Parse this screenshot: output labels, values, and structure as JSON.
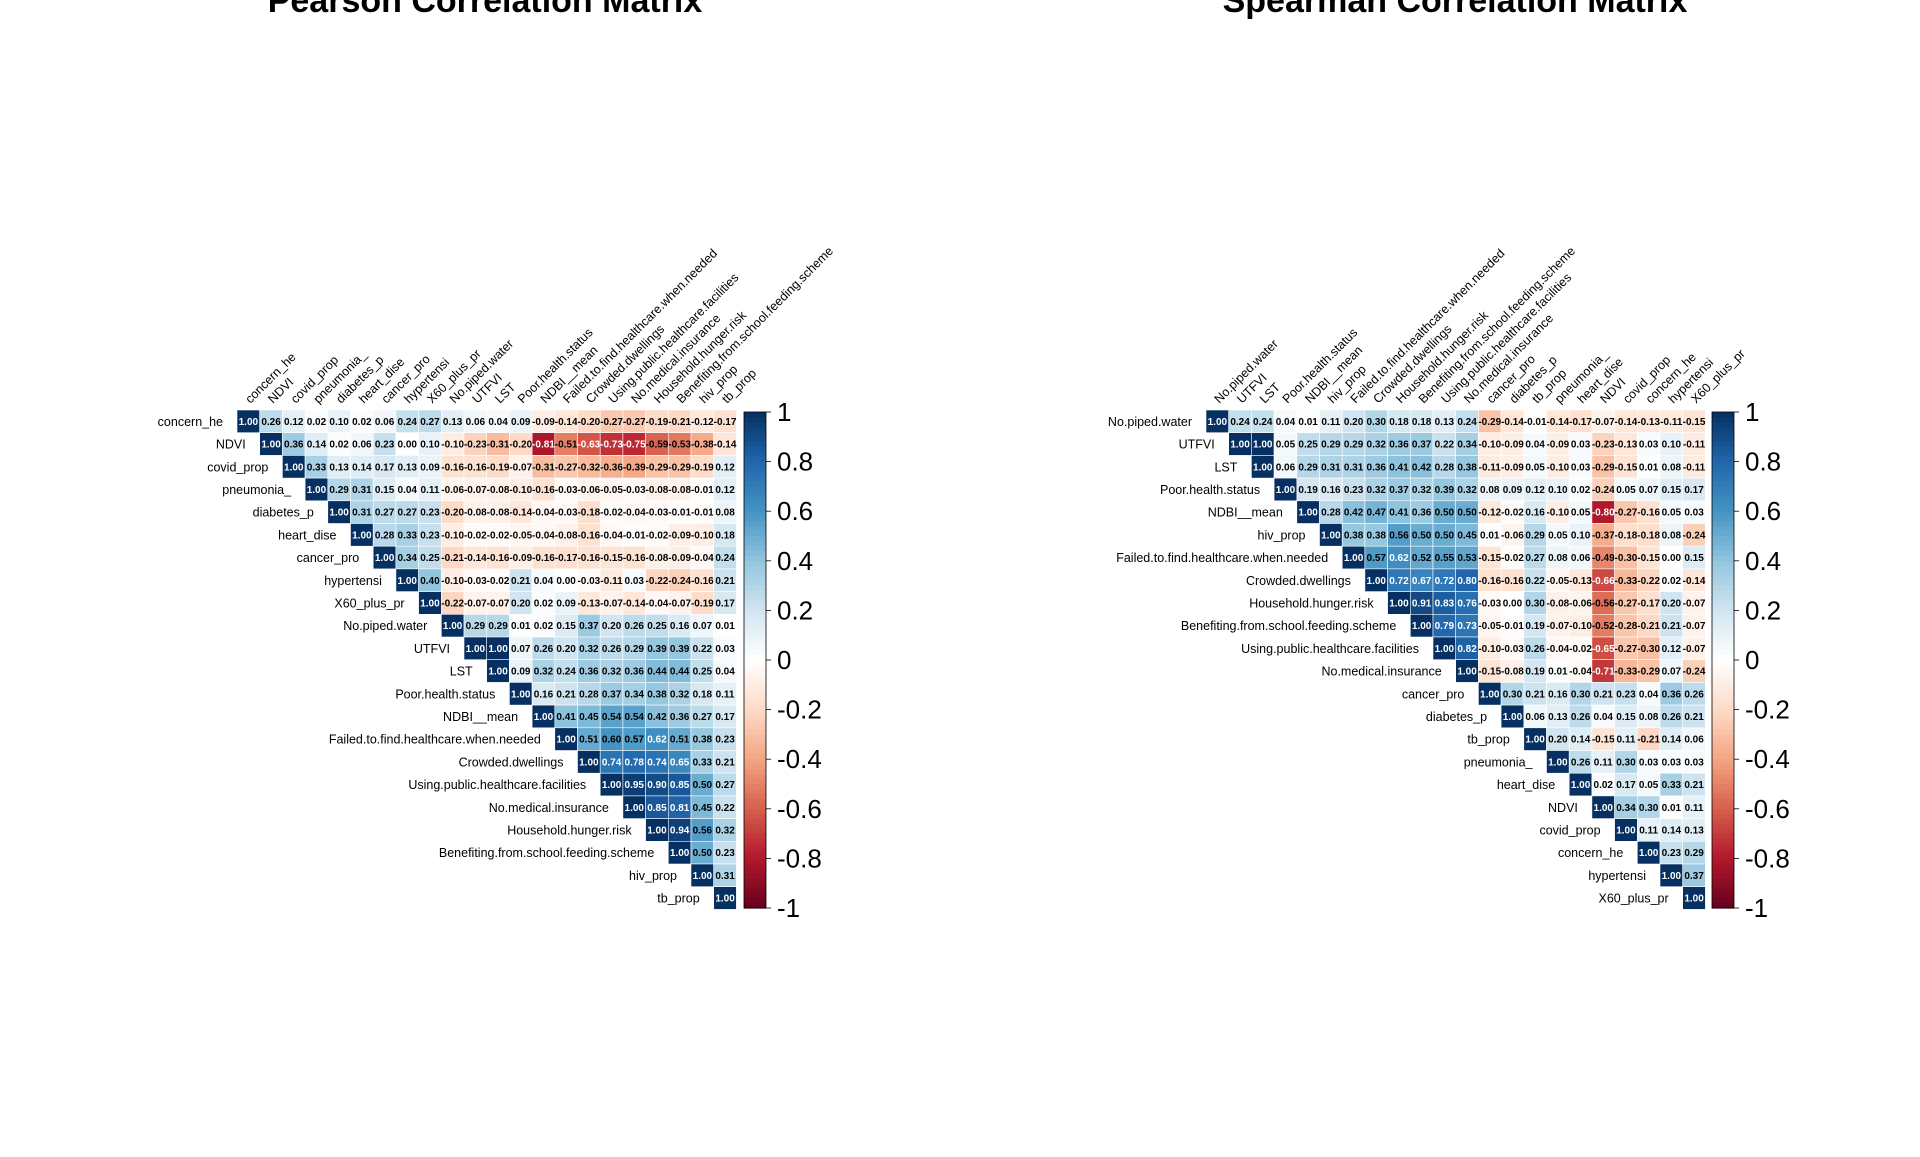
{
  "colors": {
    "strong_negative": "#67001F",
    "negative": "#B2182B",
    "mid_negative": "#D6604D",
    "light_negative": "#F4A582",
    "pale_negative": "#FDDBC7",
    "zero": "#FFFFFF",
    "pale_positive": "#D1E5F0",
    "light_positive": "#92C5DE",
    "mid_positive": "#4393C3",
    "positive": "#2166AC",
    "strong_positive": "#053061"
  },
  "chart_data": [
    {
      "type": "heatmap",
      "title": "Pearson Correlation Matrix",
      "layout": "upper-triangle",
      "legend_placement": "right",
      "legend_ticks": [
        "1",
        "0.8",
        "0.6",
        "0.4",
        "0.2",
        "0",
        "-0.2",
        "-0.4",
        "-0.6",
        "-0.8",
        "-1"
      ],
      "value_range": [
        -1,
        1
      ],
      "variables": [
        "concern_he",
        "NDVI",
        "covid_prop",
        "pneumonia_",
        "diabetes_p",
        "heart_dise",
        "cancer_pro",
        "hypertensi",
        "X60_plus_pr",
        "No.piped.water",
        "UTFVI",
        "LST",
        "Poor.health.status",
        "NDBI__mean",
        "Failed.to.find.healthcare.when.needed",
        "Crowded.dwellings",
        "Using.public.healthcare.facilities",
        "No.medical.insurance",
        "Household.hunger.risk",
        "Benefiting.from.school.feeding.scheme",
        "hiv_prop",
        "tb_prop"
      ],
      "matrix": [
        [
          1.0,
          0.26,
          0.12,
          0.02,
          0.1,
          0.02,
          0.06,
          0.24,
          0.27,
          0.13,
          0.06,
          0.04,
          0.09,
          -0.09,
          -0.14,
          -0.2,
          -0.27,
          -0.27,
          -0.19,
          -0.21,
          -0.12,
          -0.17
        ],
        [
          null,
          1.0,
          0.36,
          0.14,
          0.02,
          0.06,
          0.23,
          0.0,
          0.1,
          -0.1,
          -0.23,
          -0.31,
          -0.2,
          -0.81,
          -0.51,
          -0.63,
          -0.73,
          -0.75,
          -0.59,
          -0.53,
          -0.38,
          -0.14
        ],
        [
          null,
          null,
          1.0,
          0.33,
          0.13,
          0.14,
          0.17,
          0.13,
          0.09,
          -0.16,
          -0.16,
          -0.19,
          -0.07,
          -0.31,
          -0.27,
          -0.32,
          -0.36,
          -0.39,
          -0.29,
          -0.29,
          -0.19,
          0.12
        ],
        [
          null,
          null,
          null,
          1.0,
          0.29,
          0.31,
          0.15,
          0.04,
          0.11,
          -0.06,
          -0.07,
          -0.08,
          -0.1,
          -0.16,
          -0.03,
          -0.06,
          -0.05,
          -0.03,
          -0.08,
          -0.08,
          -0.01,
          0.12
        ],
        [
          null,
          null,
          null,
          null,
          1.0,
          0.31,
          0.27,
          0.27,
          0.23,
          -0.2,
          -0.08,
          -0.08,
          -0.14,
          -0.04,
          -0.03,
          -0.18,
          -0.02,
          -0.04,
          -0.03,
          -0.01,
          -0.01,
          0.08
        ],
        [
          null,
          null,
          null,
          null,
          null,
          1.0,
          0.28,
          0.33,
          0.23,
          -0.1,
          -0.02,
          -0.02,
          -0.05,
          -0.04,
          -0.08,
          -0.16,
          -0.04,
          -0.01,
          -0.02,
          -0.09,
          -0.1,
          0.18
        ],
        [
          null,
          null,
          null,
          null,
          null,
          null,
          1.0,
          0.34,
          0.25,
          -0.21,
          -0.14,
          -0.16,
          -0.09,
          -0.16,
          -0.17,
          -0.16,
          -0.15,
          -0.16,
          -0.08,
          -0.09,
          -0.04,
          0.24
        ],
        [
          null,
          null,
          null,
          null,
          null,
          null,
          null,
          1.0,
          0.4,
          -0.1,
          -0.03,
          -0.02,
          0.21,
          0.04,
          0.0,
          -0.03,
          -0.11,
          0.03,
          -0.22,
          -0.24,
          -0.16,
          0.21
        ],
        [
          null,
          null,
          null,
          null,
          null,
          null,
          null,
          null,
          1.0,
          -0.22,
          -0.07,
          -0.07,
          0.2,
          0.02,
          0.09,
          -0.13,
          -0.07,
          -0.14,
          -0.04,
          -0.07,
          -0.19,
          0.17
        ],
        [
          null,
          null,
          null,
          null,
          null,
          null,
          null,
          null,
          null,
          1.0,
          0.29,
          0.29,
          0.01,
          0.02,
          0.15,
          0.37,
          0.2,
          0.26,
          0.25,
          0.16,
          0.07,
          0.01
        ],
        [
          null,
          null,
          null,
          null,
          null,
          null,
          null,
          null,
          null,
          null,
          1.0,
          1.0,
          0.07,
          0.26,
          0.2,
          0.32,
          0.26,
          0.29,
          0.39,
          0.39,
          0.22,
          0.03
        ],
        [
          null,
          null,
          null,
          null,
          null,
          null,
          null,
          null,
          null,
          null,
          null,
          1.0,
          0.09,
          0.32,
          0.24,
          0.36,
          0.32,
          0.36,
          0.44,
          0.44,
          0.25,
          0.04
        ],
        [
          null,
          null,
          null,
          null,
          null,
          null,
          null,
          null,
          null,
          null,
          null,
          null,
          1.0,
          0.16,
          0.21,
          0.28,
          0.37,
          0.34,
          0.38,
          0.32,
          0.18,
          0.11
        ],
        [
          null,
          null,
          null,
          null,
          null,
          null,
          null,
          null,
          null,
          null,
          null,
          null,
          null,
          1.0,
          0.41,
          0.45,
          0.54,
          0.54,
          0.42,
          0.36,
          0.27,
          0.17
        ],
        [
          null,
          null,
          null,
          null,
          null,
          null,
          null,
          null,
          null,
          null,
          null,
          null,
          null,
          null,
          1.0,
          0.51,
          0.6,
          0.57,
          0.62,
          0.51,
          0.38,
          0.23
        ],
        [
          null,
          null,
          null,
          null,
          null,
          null,
          null,
          null,
          null,
          null,
          null,
          null,
          null,
          null,
          null,
          1.0,
          0.74,
          0.78,
          0.74,
          0.65,
          0.33,
          0.21
        ],
        [
          null,
          null,
          null,
          null,
          null,
          null,
          null,
          null,
          null,
          null,
          null,
          null,
          null,
          null,
          null,
          null,
          1.0,
          0.95,
          0.9,
          0.85,
          0.5,
          0.27
        ],
        [
          null,
          null,
          null,
          null,
          null,
          null,
          null,
          null,
          null,
          null,
          null,
          null,
          null,
          null,
          null,
          null,
          null,
          1.0,
          0.85,
          0.81,
          0.45,
          0.22
        ],
        [
          null,
          null,
          null,
          null,
          null,
          null,
          null,
          null,
          null,
          null,
          null,
          null,
          null,
          null,
          null,
          null,
          null,
          null,
          1.0,
          0.94,
          0.56,
          0.32
        ],
        [
          null,
          null,
          null,
          null,
          null,
          null,
          null,
          null,
          null,
          null,
          null,
          null,
          null,
          null,
          null,
          null,
          null,
          null,
          null,
          1.0,
          0.5,
          0.23
        ],
        [
          null,
          null,
          null,
          null,
          null,
          null,
          null,
          null,
          null,
          null,
          null,
          null,
          null,
          null,
          null,
          null,
          null,
          null,
          null,
          null,
          1.0,
          0.31
        ],
        [
          null,
          null,
          null,
          null,
          null,
          null,
          null,
          null,
          null,
          null,
          null,
          null,
          null,
          null,
          null,
          null,
          null,
          null,
          null,
          null,
          null,
          1.0
        ]
      ]
    },
    {
      "type": "heatmap",
      "title": "Spearman Correlation Matrix",
      "layout": "upper-triangle",
      "legend_placement": "right",
      "legend_ticks": [
        "1",
        "0.8",
        "0.6",
        "0.4",
        "0.2",
        "0",
        "-0.2",
        "-0.4",
        "-0.6",
        "-0.8",
        "-1"
      ],
      "value_range": [
        -1,
        1
      ],
      "variables": [
        "No.piped.water",
        "UTFVI",
        "LST",
        "Poor.health.status",
        "NDBI__mean",
        "hiv_prop",
        "Failed.to.find.healthcare.when.needed",
        "Crowded.dwellings",
        "Household.hunger.risk",
        "Benefiting.from.school.feeding.scheme",
        "Using.public.healthcare.facilities",
        "No.medical.insurance",
        "cancer_pro",
        "diabetes_p",
        "tb_prop",
        "pneumonia_",
        "heart_dise",
        "NDVI",
        "covid_prop",
        "concern_he",
        "hypertensi",
        "X60_plus_pr"
      ],
      "matrix": [
        [
          1.0,
          0.24,
          0.24,
          0.04,
          0.01,
          0.11,
          0.2,
          0.3,
          0.18,
          0.18,
          0.13,
          0.24,
          -0.29,
          -0.14,
          -0.01,
          -0.14,
          -0.17,
          -0.07,
          -0.14,
          -0.13,
          -0.11,
          -0.15
        ],
        [
          null,
          1.0,
          1.0,
          0.05,
          0.25,
          0.29,
          0.29,
          0.32,
          0.36,
          0.37,
          0.22,
          0.34,
          -0.1,
          -0.09,
          0.04,
          -0.09,
          0.03,
          -0.23,
          -0.13,
          0.03,
          0.1,
          -0.11
        ],
        [
          null,
          null,
          1.0,
          0.06,
          0.29,
          0.31,
          0.31,
          0.36,
          0.41,
          0.42,
          0.28,
          0.38,
          -0.11,
          -0.09,
          0.05,
          -0.1,
          0.03,
          -0.29,
          -0.15,
          0.01,
          0.08,
          -0.11
        ],
        [
          null,
          null,
          null,
          1.0,
          0.19,
          0.16,
          0.23,
          0.32,
          0.37,
          0.32,
          0.39,
          0.32,
          0.08,
          0.09,
          0.12,
          0.1,
          0.02,
          -0.24,
          0.05,
          0.07,
          0.15,
          0.17
        ],
        [
          null,
          null,
          null,
          null,
          1.0,
          0.28,
          0.42,
          0.47,
          0.41,
          0.36,
          0.5,
          0.5,
          -0.12,
          -0.02,
          0.16,
          -0.1,
          0.05,
          -0.8,
          -0.27,
          -0.16,
          0.05,
          0.03
        ],
        [
          null,
          null,
          null,
          null,
          null,
          1.0,
          0.38,
          0.38,
          0.56,
          0.5,
          0.5,
          0.45,
          0.01,
          -0.06,
          0.29,
          0.05,
          0.1,
          -0.37,
          -0.18,
          -0.18,
          0.08,
          -0.24
        ],
        [
          null,
          null,
          null,
          null,
          null,
          null,
          1.0,
          0.57,
          0.62,
          0.52,
          0.55,
          0.53,
          -0.15,
          -0.02,
          0.27,
          0.08,
          0.06,
          -0.49,
          -0.3,
          -0.15,
          0.0,
          0.15
        ],
        [
          null,
          null,
          null,
          null,
          null,
          null,
          null,
          1.0,
          0.72,
          0.67,
          0.72,
          0.8,
          -0.16,
          -0.16,
          0.22,
          -0.05,
          -0.13,
          -0.66,
          -0.33,
          -0.22,
          0.02,
          -0.14
        ],
        [
          null,
          null,
          null,
          null,
          null,
          null,
          null,
          null,
          1.0,
          0.91,
          0.83,
          0.76,
          -0.03,
          0.0,
          0.3,
          -0.08,
          -0.06,
          -0.56,
          -0.27,
          -0.17,
          0.2,
          -0.07
        ],
        [
          null,
          null,
          null,
          null,
          null,
          null,
          null,
          null,
          null,
          1.0,
          0.79,
          0.73,
          -0.05,
          -0.01,
          0.19,
          -0.07,
          -0.1,
          -0.52,
          -0.28,
          -0.21,
          0.21,
          -0.07
        ],
        [
          null,
          null,
          null,
          null,
          null,
          null,
          null,
          null,
          null,
          null,
          1.0,
          0.82,
          -0.1,
          -0.03,
          0.26,
          -0.04,
          -0.02,
          -0.65,
          -0.27,
          -0.3,
          0.12,
          -0.07
        ],
        [
          null,
          null,
          null,
          null,
          null,
          null,
          null,
          null,
          null,
          null,
          null,
          1.0,
          -0.15,
          -0.08,
          0.19,
          0.01,
          -0.04,
          -0.71,
          -0.33,
          -0.29,
          0.07,
          -0.24
        ],
        [
          null,
          null,
          null,
          null,
          null,
          null,
          null,
          null,
          null,
          null,
          null,
          null,
          1.0,
          0.3,
          0.21,
          0.16,
          0.3,
          0.21,
          0.23,
          0.04,
          0.36,
          0.26
        ],
        [
          null,
          null,
          null,
          null,
          null,
          null,
          null,
          null,
          null,
          null,
          null,
          null,
          null,
          1.0,
          0.06,
          0.13,
          0.26,
          0.04,
          0.15,
          0.08,
          0.26,
          0.21
        ],
        [
          null,
          null,
          null,
          null,
          null,
          null,
          null,
          null,
          null,
          null,
          null,
          null,
          null,
          null,
          1.0,
          0.2,
          0.14,
          -0.15,
          0.11,
          -0.21,
          0.14,
          0.06
        ],
        [
          null,
          null,
          null,
          null,
          null,
          null,
          null,
          null,
          null,
          null,
          null,
          null,
          null,
          null,
          null,
          1.0,
          0.26,
          0.11,
          0.3,
          0.03,
          0.03,
          0.03
        ],
        [
          null,
          null,
          null,
          null,
          null,
          null,
          null,
          null,
          null,
          null,
          null,
          null,
          null,
          null,
          null,
          null,
          1.0,
          0.02,
          0.17,
          0.05,
          0.33,
          0.21
        ],
        [
          null,
          null,
          null,
          null,
          null,
          null,
          null,
          null,
          null,
          null,
          null,
          null,
          null,
          null,
          null,
          null,
          null,
          1.0,
          0.34,
          0.3,
          0.01,
          0.11
        ],
        [
          null,
          null,
          null,
          null,
          null,
          null,
          null,
          null,
          null,
          null,
          null,
          null,
          null,
          null,
          null,
          null,
          null,
          null,
          1.0,
          0.11,
          0.14,
          0.13
        ],
        [
          null,
          null,
          null,
          null,
          null,
          null,
          null,
          null,
          null,
          null,
          null,
          null,
          null,
          null,
          null,
          null,
          null,
          null,
          null,
          1.0,
          0.23,
          0.29
        ],
        [
          null,
          null,
          null,
          null,
          null,
          null,
          null,
          null,
          null,
          null,
          null,
          null,
          null,
          null,
          null,
          null,
          null,
          null,
          null,
          null,
          1.0,
          0.37
        ],
        [
          null,
          null,
          null,
          null,
          null,
          null,
          null,
          null,
          null,
          null,
          null,
          null,
          null,
          null,
          null,
          null,
          null,
          null,
          null,
          null,
          null,
          1.0
        ]
      ]
    }
  ]
}
